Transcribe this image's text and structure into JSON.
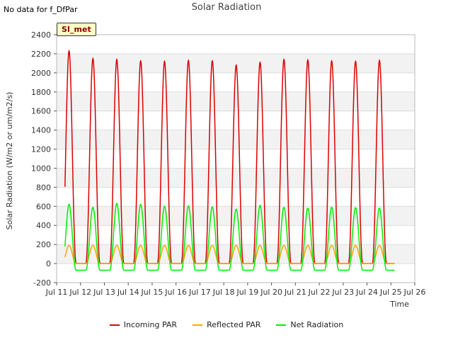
{
  "note": "No data for f_DfPar",
  "chart_data": {
    "type": "line",
    "title": "Solar Radiation",
    "site_label": "SI_met",
    "xlabel": "Time",
    "ylabel": "Solar Radiation (W/m2 or um/m2/s)",
    "ylim": [
      -200,
      2400
    ],
    "yticks": [
      -200,
      0,
      200,
      400,
      600,
      800,
      1000,
      1200,
      1400,
      1600,
      1800,
      2000,
      2200,
      2400
    ],
    "xlim_days": [
      11,
      26
    ],
    "xticks": [
      {
        "day": 11,
        "label": "Jul 11"
      },
      {
        "day": 12,
        "label": "Jul 12"
      },
      {
        "day": 13,
        "label": "Jul 13"
      },
      {
        "day": 14,
        "label": "Jul 14"
      },
      {
        "day": 15,
        "label": "Jul 15"
      },
      {
        "day": 16,
        "label": "Jul 16"
      },
      {
        "day": 17,
        "label": "Jul 17"
      },
      {
        "day": 18,
        "label": "Jul 18"
      },
      {
        "day": 19,
        "label": "Jul 19"
      },
      {
        "day": 20,
        "label": "Jul 20"
      },
      {
        "day": 21,
        "label": "Jul 21"
      },
      {
        "day": 22,
        "label": "Jul 22"
      },
      {
        "day": 23,
        "label": "Jul 23"
      },
      {
        "day": 24,
        "label": "Jul 24"
      },
      {
        "day": 25,
        "label": "Jul 25"
      },
      {
        "day": 26,
        "label": "Jul 26"
      }
    ],
    "grid": true,
    "legend_position": "bottom",
    "series": [
      {
        "name": "Incoming PAR",
        "color": "#dd0000",
        "daily_peaks": [
          2230,
          2150,
          2140,
          2125,
          2120,
          2130,
          2125,
          2080,
          2110,
          2140,
          2135,
          2125,
          2120,
          2130
        ],
        "night_value": 0
      },
      {
        "name": "Reflected PAR",
        "color": "#ffa500",
        "daily_peaks": [
          190,
          190,
          190,
          190,
          190,
          190,
          190,
          190,
          190,
          190,
          190,
          190,
          190,
          190
        ],
        "night_value": 0
      },
      {
        "name": "Net Radiation",
        "color": "#00ee00",
        "daily_peaks": [
          620,
          590,
          630,
          620,
          600,
          605,
          595,
          570,
          610,
          590,
          580,
          590,
          585,
          580
        ],
        "night_value": -70
      }
    ]
  }
}
